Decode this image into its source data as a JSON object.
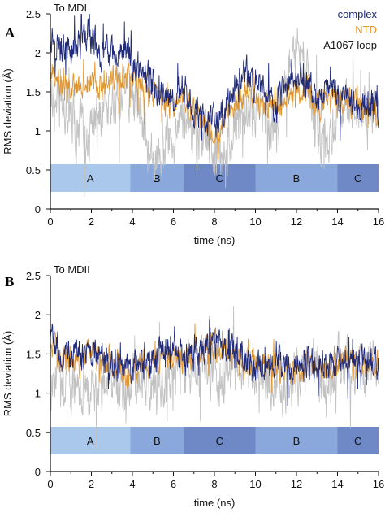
{
  "colors": {
    "complex": "#1f2a7a",
    "NTD": "#e0962f",
    "loop": "#c2c2c2",
    "seg_A": "#a9c8ec",
    "seg_B": "#8aa8dc",
    "seg_C": "#6e89c6"
  },
  "chart_data": [
    {
      "type": "line",
      "panel_letter": "A",
      "title": "To MDI",
      "xlabel": "time (ns)",
      "ylabel": "RMS deviation (Å)",
      "xlim": [
        0,
        16
      ],
      "ylim": [
        0,
        2.5
      ],
      "x_ticks": [
        "0",
        "2",
        "4",
        "6",
        "8",
        "10",
        "12",
        "14",
        "16"
      ],
      "y_ticks": [
        "0",
        "0.5",
        "1",
        "1.5",
        "2",
        "2.5"
      ],
      "legend_position": "top-right",
      "x": [
        0,
        0.5,
        1,
        1.5,
        2,
        2.5,
        3,
        3.5,
        4,
        4.5,
        5,
        5.5,
        6,
        6.5,
        7,
        7.5,
        8,
        8.5,
        9,
        9.5,
        10,
        10.5,
        11,
        11.5,
        12,
        12.5,
        13,
        13.5,
        14,
        14.5,
        15,
        15.5,
        16
      ],
      "series": [
        {
          "name": "complex",
          "color_key": "complex",
          "values": [
            2.25,
            2.1,
            2.0,
            2.2,
            2.2,
            1.95,
            2.0,
            2.05,
            1.85,
            1.7,
            1.6,
            1.5,
            1.45,
            1.5,
            1.3,
            1.15,
            1.1,
            1.25,
            1.55,
            1.75,
            1.6,
            1.45,
            1.3,
            1.55,
            1.7,
            1.6,
            1.4,
            1.45,
            1.45,
            1.4,
            1.35,
            1.35,
            1.3
          ]
        },
        {
          "name": "NTD",
          "color_key": "NTD",
          "values": [
            1.8,
            1.6,
            1.55,
            1.55,
            1.6,
            1.55,
            1.7,
            1.6,
            1.75,
            1.55,
            1.45,
            1.35,
            1.35,
            1.45,
            1.3,
            1.1,
            1.0,
            1.1,
            1.3,
            1.45,
            1.4,
            1.3,
            1.35,
            1.45,
            1.55,
            1.5,
            1.35,
            1.35,
            1.4,
            1.3,
            1.3,
            1.25,
            1.3
          ]
        },
        {
          "name": "A1067 loop",
          "color_key": "loop",
          "values": [
            1.5,
            1.4,
            1.1,
            1.0,
            1.05,
            1.15,
            1.3,
            1.5,
            1.55,
            1.2,
            0.7,
            0.8,
            0.95,
            1.1,
            1.0,
            0.9,
            0.7,
            0.85,
            1.05,
            1.25,
            1.3,
            1.25,
            1.15,
            1.55,
            2.2,
            1.7,
            1.1,
            0.85,
            1.25,
            1.3,
            1.25,
            1.3,
            1.2
          ]
        }
      ],
      "segments": [
        {
          "label": "A",
          "start": 0,
          "end": 3.9,
          "color_key": "seg_A"
        },
        {
          "label": "B",
          "start": 3.9,
          "end": 6.5,
          "color_key": "seg_B"
        },
        {
          "label": "C",
          "start": 6.5,
          "end": 10.0,
          "color_key": "seg_C"
        },
        {
          "label": "B",
          "start": 10.0,
          "end": 14.0,
          "color_key": "seg_B"
        },
        {
          "label": "C",
          "start": 14.0,
          "end": 16.0,
          "color_key": "seg_C"
        }
      ]
    },
    {
      "type": "line",
      "panel_letter": "B",
      "title": "To MDII",
      "xlabel": "time (ns)",
      "ylabel": "RMS deviation (Å)",
      "xlim": [
        0,
        16
      ],
      "ylim": [
        0,
        2.5
      ],
      "x_ticks": [
        "0",
        "2",
        "4",
        "6",
        "8",
        "10",
        "12",
        "14",
        "16"
      ],
      "y_ticks": [
        "0",
        "0.5",
        "1",
        "1.5",
        "2",
        "2.5"
      ],
      "legend_position": "",
      "x": [
        0,
        0.5,
        1,
        1.5,
        2,
        2.5,
        3,
        3.5,
        4,
        4.5,
        5,
        5.5,
        6,
        6.5,
        7,
        7.5,
        8,
        8.5,
        9,
        9.5,
        10,
        10.5,
        11,
        11.5,
        12,
        12.5,
        13,
        13.5,
        14,
        14.5,
        15,
        15.5,
        16
      ],
      "series": [
        {
          "name": "",
          "color_key": "complex",
          "values": [
            1.8,
            1.45,
            1.5,
            1.45,
            1.6,
            1.45,
            1.4,
            1.35,
            1.3,
            1.45,
            1.45,
            1.5,
            1.5,
            1.4,
            1.55,
            1.6,
            1.7,
            1.55,
            1.5,
            1.45,
            1.35,
            1.4,
            1.35,
            1.35,
            1.3,
            1.4,
            1.35,
            1.4,
            1.35,
            1.4,
            1.45,
            1.35,
            1.4
          ]
        },
        {
          "name": "",
          "color_key": "NTD",
          "values": [
            1.7,
            1.4,
            1.45,
            1.4,
            1.55,
            1.45,
            1.4,
            1.3,
            1.3,
            1.4,
            1.4,
            1.45,
            1.45,
            1.4,
            1.5,
            1.55,
            1.6,
            1.5,
            1.5,
            1.4,
            1.35,
            1.4,
            1.35,
            1.35,
            1.3,
            1.4,
            1.35,
            1.4,
            1.35,
            1.45,
            1.4,
            1.35,
            1.4
          ]
        },
        {
          "name": "",
          "color_key": "loop",
          "values": [
            1.2,
            1.3,
            1.05,
            1.15,
            1.0,
            1.1,
            1.2,
            0.95,
            1.05,
            1.2,
            1.0,
            1.1,
            1.3,
            1.2,
            1.25,
            1.35,
            1.2,
            1.15,
            1.3,
            1.25,
            1.4,
            1.2,
            1.15,
            1.05,
            1.2,
            1.5,
            1.25,
            1.0,
            1.35,
            1.3,
            1.25,
            1.25,
            1.3
          ]
        }
      ],
      "segments": [
        {
          "label": "A",
          "start": 0,
          "end": 3.9,
          "color_key": "seg_A"
        },
        {
          "label": "B",
          "start": 3.9,
          "end": 6.5,
          "color_key": "seg_B"
        },
        {
          "label": "C",
          "start": 6.5,
          "end": 10.0,
          "color_key": "seg_C"
        },
        {
          "label": "B",
          "start": 10.0,
          "end": 14.0,
          "color_key": "seg_B"
        },
        {
          "label": "C",
          "start": 14.0,
          "end": 16.0,
          "color_key": "seg_C"
        }
      ]
    }
  ]
}
